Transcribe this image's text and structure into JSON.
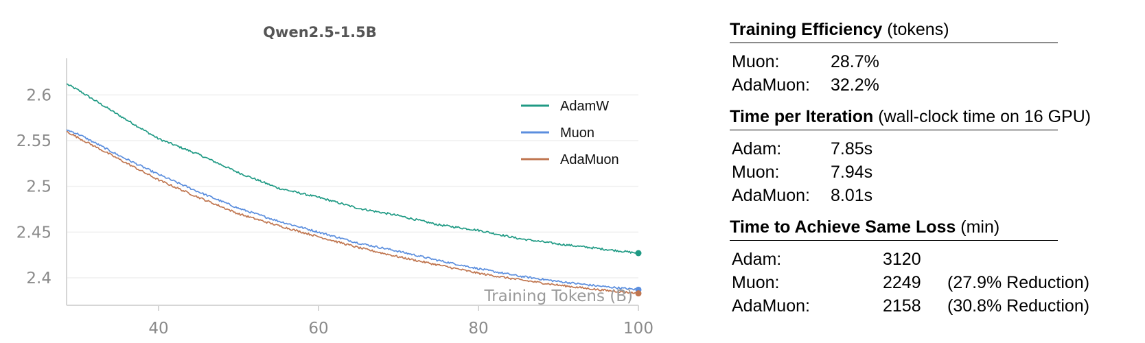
{
  "chart_data": {
    "type": "line",
    "title": "Qwen2.5-1.5B",
    "xlabel": "Training Tokens (B)",
    "ylabel": "",
    "xlim": [
      28.5,
      100
    ],
    "ylim": [
      2.37,
      2.64
    ],
    "xticks": [
      40,
      60,
      80,
      100
    ],
    "yticks": [
      2.4,
      2.45,
      2.5,
      2.55,
      2.6
    ],
    "grid": "horizontal",
    "legend_position": "top-right",
    "series": [
      {
        "name": "AdamW",
        "color": "#1f9a84",
        "x": [
          28.5,
          30,
          35,
          40,
          45,
          50,
          55,
          60,
          65,
          70,
          75,
          80,
          85,
          90,
          95,
          100
        ],
        "y": [
          2.612,
          2.605,
          2.578,
          2.552,
          2.535,
          2.515,
          2.498,
          2.488,
          2.476,
          2.468,
          2.458,
          2.452,
          2.443,
          2.437,
          2.432,
          2.427
        ]
      },
      {
        "name": "Muon",
        "color": "#5b8ede",
        "x": [
          28.5,
          30,
          35,
          40,
          45,
          50,
          55,
          60,
          65,
          70,
          75,
          80,
          85,
          90,
          95,
          100
        ],
        "y": [
          2.562,
          2.557,
          2.534,
          2.513,
          2.494,
          2.476,
          2.462,
          2.45,
          2.438,
          2.429,
          2.419,
          2.41,
          2.402,
          2.396,
          2.391,
          2.387
        ]
      },
      {
        "name": "AdaMuon",
        "color": "#c07650",
        "x": [
          28.5,
          30,
          35,
          40,
          45,
          50,
          55,
          60,
          65,
          70,
          75,
          80,
          85,
          90,
          95,
          100
        ],
        "y": [
          2.56,
          2.553,
          2.53,
          2.507,
          2.488,
          2.47,
          2.457,
          2.445,
          2.433,
          2.423,
          2.414,
          2.405,
          2.398,
          2.392,
          2.387,
          2.383
        ]
      }
    ]
  },
  "panel": {
    "sections": [
      {
        "title": "Training Efficiency",
        "subtitle": " (tokens)",
        "rows": [
          {
            "label": "Muon:",
            "value": "28.7%",
            "note": ""
          },
          {
            "label": "AdaMuon:",
            "value": "32.2%",
            "note": ""
          }
        ]
      },
      {
        "title": "Time per Iteration",
        "subtitle": " (wall-clock time on 16 GPU)",
        "rows": [
          {
            "label": "Adam:",
            "value": "7.85s",
            "note": ""
          },
          {
            "label": "Muon:",
            "value": "7.94s",
            "note": ""
          },
          {
            "label": "AdaMuon:",
            "value": "8.01s",
            "note": ""
          }
        ]
      },
      {
        "title": "Time to Achieve Same Loss",
        "subtitle": " (min)",
        "rows": [
          {
            "label": "Adam:",
            "value": "3120",
            "note": ""
          },
          {
            "label": "Muon:",
            "value": "2249",
            "note": "(27.9% Reduction)"
          },
          {
            "label": "AdaMuon:",
            "value": "2158",
            "note": "(30.8% Reduction)"
          }
        ]
      }
    ]
  }
}
